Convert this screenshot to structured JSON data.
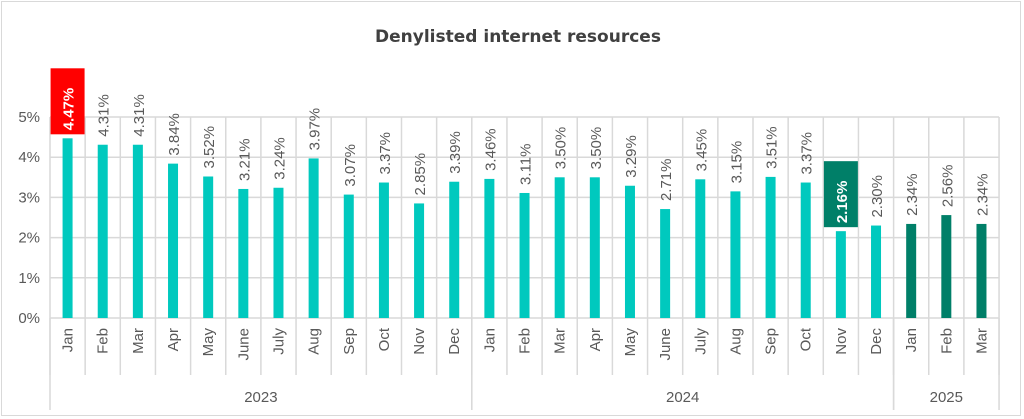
{
  "chart_data": {
    "type": "bar",
    "title": "Denylisted internet resources",
    "xlabel": "",
    "ylabel": "",
    "ylim": [
      0,
      5
    ],
    "yticks": [
      "0%",
      "1%",
      "2%",
      "3%",
      "4%",
      "5%"
    ],
    "grid": true,
    "groups": [
      {
        "label": "2023",
        "months": [
          "Jan",
          "Feb",
          "Mar",
          "Apr",
          "May",
          "June",
          "July",
          "Aug",
          "Sep",
          "Oct",
          "Nov",
          "Dec"
        ],
        "values": [
          4.47,
          4.31,
          4.31,
          3.84,
          3.52,
          3.21,
          3.24,
          3.97,
          3.07,
          3.37,
          2.85,
          3.39
        ]
      },
      {
        "label": "2024",
        "months": [
          "Jan",
          "Feb",
          "Mar",
          "Apr",
          "May",
          "June",
          "July",
          "Aug",
          "Sep",
          "Oct",
          "Nov",
          "Dec"
        ],
        "values": [
          3.46,
          3.11,
          3.5,
          3.5,
          3.29,
          2.71,
          3.45,
          3.15,
          3.51,
          3.37,
          2.16,
          2.3
        ]
      },
      {
        "label": "2025",
        "months": [
          "Jan",
          "Feb",
          "Mar"
        ],
        "values": [
          2.34,
          2.56,
          2.34
        ]
      }
    ],
    "highlights": {
      "max": {
        "group": 0,
        "index": 0,
        "color": "#FF0000"
      },
      "min": {
        "group": 1,
        "index": 10,
        "color": "#007F68"
      }
    },
    "colors": {
      "default": "#00C9BE",
      "current_year": "#007F68",
      "label": "#595959",
      "grid": "#D9D9D9"
    }
  }
}
